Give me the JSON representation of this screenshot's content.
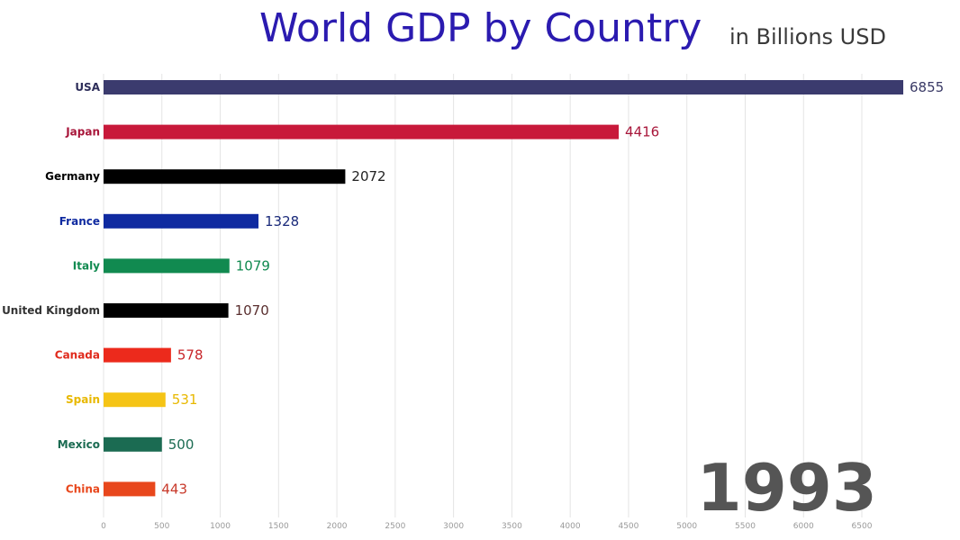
{
  "chart_data": {
    "type": "bar",
    "orientation": "horizontal",
    "title": "World GDP by Country",
    "subtitle": "in Billions USD",
    "year": "1993",
    "categories": [
      "USA",
      "Japan",
      "Germany",
      "France",
      "Italy",
      "United Kingdom",
      "Canada",
      "Spain",
      "Mexico",
      "China"
    ],
    "values": [
      6855,
      4416,
      2072,
      1328,
      1079,
      1070,
      578,
      531,
      500,
      443
    ],
    "colors": [
      "#3b3b6e",
      "#c8193a",
      "#000000",
      "#0f2aa0",
      "#118a50",
      "#000000",
      "#ec2a1c",
      "#f5c416",
      "#1b6b52",
      "#e8471c"
    ],
    "label_colors": [
      "#2e2e5a",
      "#a8163a",
      "#000000",
      "#0f2aa0",
      "#118a50",
      "#333333",
      "#e02a1c",
      "#e8b800",
      "#1b6b52",
      "#e8471c"
    ],
    "value_label_colors": [
      "#3a3a66",
      "#a8163a",
      "#222222",
      "#1a2a7a",
      "#118a50",
      "#5a2f2f",
      "#c8262a",
      "#e8b800",
      "#1b6b52",
      "#c8392a"
    ],
    "xlim": [
      0,
      6855
    ],
    "xticks": [
      0,
      500,
      1000,
      1500,
      2000,
      2500,
      3000,
      3500,
      4000,
      4500,
      5000,
      5500,
      6000,
      6500
    ],
    "grid": true
  }
}
